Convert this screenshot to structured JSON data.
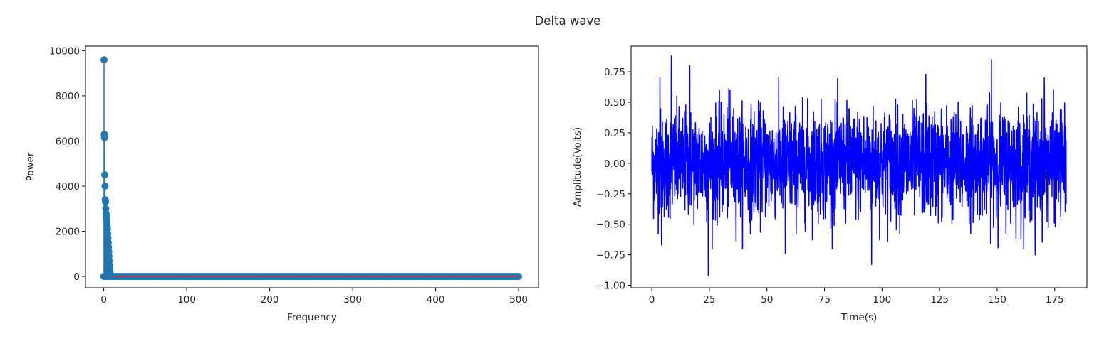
{
  "suptitle": "Delta wave",
  "colors": {
    "stem": "#1f77b4",
    "baseline": "#d62728",
    "signal": "#0000ff",
    "axes": "#000000",
    "background": "#ffffff"
  },
  "chart_data": [
    {
      "type": "stem",
      "title": "",
      "xlabel": "Frequency",
      "ylabel": "Power",
      "xlim": [
        -22,
        524
      ],
      "ylim": [
        -500,
        10200
      ],
      "xticks": [
        0,
        100,
        200,
        300,
        400,
        500
      ],
      "yticks": [
        0,
        2000,
        4000,
        6000,
        8000,
        10000
      ],
      "xtick_labels": [
        "0",
        "100",
        "200",
        "300",
        "400",
        "500"
      ],
      "ytick_labels": [
        "0",
        "2000",
        "4000",
        "6000",
        "8000",
        "10000"
      ],
      "frequency_range": [
        0,
        500
      ],
      "frequency_step": 2,
      "peaks": [
        {
          "x": 0.3,
          "y": 9600
        },
        {
          "x": 0.6,
          "y": 6300
        },
        {
          "x": 0.9,
          "y": 6150
        },
        {
          "x": 1.2,
          "y": 4500
        },
        {
          "x": 1.5,
          "y": 4000
        },
        {
          "x": 1.8,
          "y": 3400
        },
        {
          "x": 2.1,
          "y": 3300
        },
        {
          "x": 2.4,
          "y": 3000
        },
        {
          "x": 2.7,
          "y": 2800
        },
        {
          "x": 3.0,
          "y": 2700
        },
        {
          "x": 3.3,
          "y": 2600
        },
        {
          "x": 3.6,
          "y": 2500
        },
        {
          "x": 3.9,
          "y": 2400
        },
        {
          "x": 4.2,
          "y": 2200
        },
        {
          "x": 4.5,
          "y": 2100
        },
        {
          "x": 4.8,
          "y": 1900
        },
        {
          "x": 5.1,
          "y": 1700
        },
        {
          "x": 5.4,
          "y": 1500
        },
        {
          "x": 5.7,
          "y": 1300
        },
        {
          "x": 6.0,
          "y": 1100
        },
        {
          "x": 6.3,
          "y": 900
        },
        {
          "x": 6.6,
          "y": 700
        },
        {
          "x": 6.9,
          "y": 500
        },
        {
          "x": 7.2,
          "y": 350
        },
        {
          "x": 7.5,
          "y": 200
        },
        {
          "x": 7.8,
          "y": 100
        }
      ],
      "baseline_value": 0
    },
    {
      "type": "line",
      "title": "",
      "xlabel": "Time(s)",
      "ylabel": "Amplitude(Volts)",
      "xlim": [
        -9,
        189
      ],
      "ylim": [
        -1.02,
        0.96
      ],
      "xticks": [
        0,
        25,
        50,
        75,
        100,
        125,
        150,
        175
      ],
      "yticks": [
        -1.0,
        -0.75,
        -0.5,
        -0.25,
        0.0,
        0.25,
        0.5,
        0.75
      ],
      "xtick_labels": [
        "0",
        "25",
        "50",
        "75",
        "100",
        "125",
        "150",
        "175"
      ],
      "ytick_labels": [
        "−1.00",
        "−0.75",
        "−0.50",
        "−0.25",
        "0.00",
        "0.25",
        "0.50",
        "0.75"
      ],
      "time_range": [
        0,
        180
      ],
      "amplitude_spread": 0.22,
      "extremes": [
        {
          "x": 8.5,
          "y": 0.88
        },
        {
          "x": 147.5,
          "y": 0.85
        },
        {
          "x": 24.5,
          "y": -0.92
        },
        {
          "x": 95.5,
          "y": -0.83
        },
        {
          "x": 3.5,
          "y": 0.7
        },
        {
          "x": 170.5,
          "y": 0.7
        },
        {
          "x": 16.5,
          "y": 0.8
        },
        {
          "x": 58.0,
          "y": -0.74
        },
        {
          "x": 166.5,
          "y": -0.75
        },
        {
          "x": 119.0,
          "y": 0.73
        },
        {
          "x": 4.2,
          "y": -0.67
        },
        {
          "x": 34.0,
          "y": 0.6
        }
      ]
    }
  ]
}
